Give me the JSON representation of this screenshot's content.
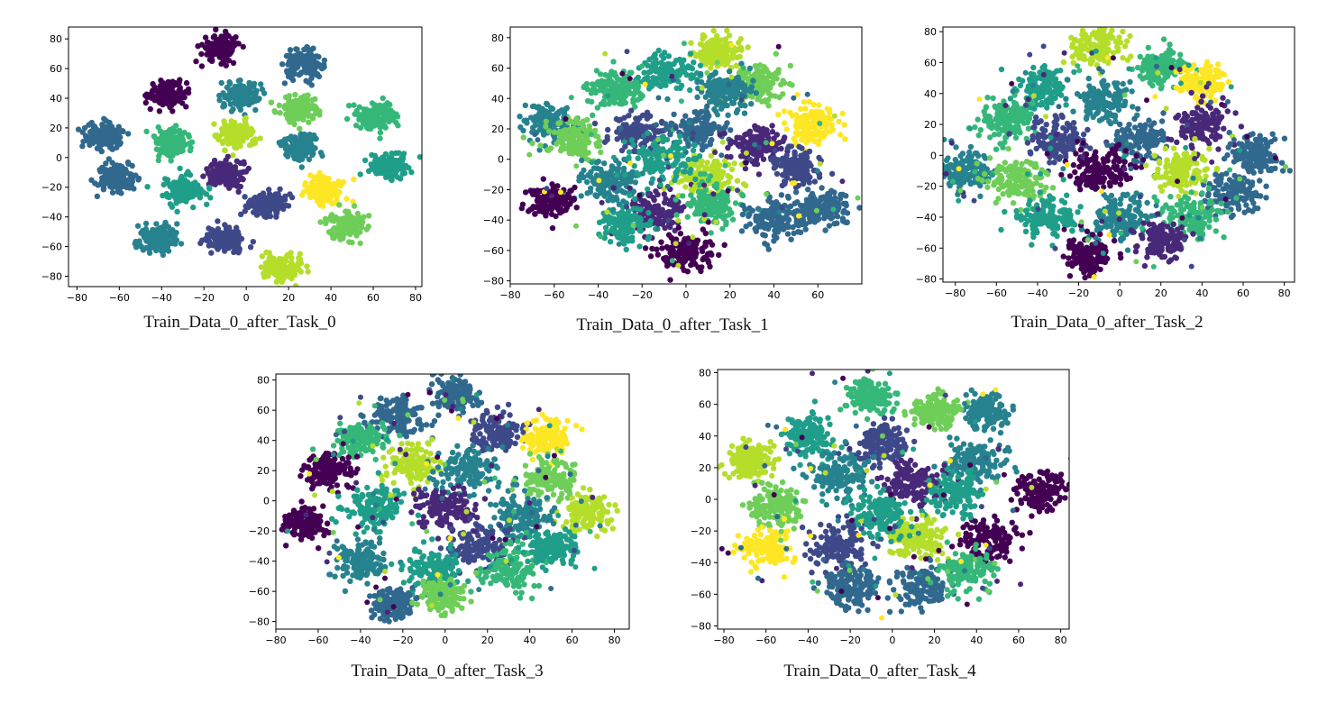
{
  "figure": {
    "type": "tsne-scatter-grid"
  },
  "palette": [
    "#440154",
    "#482878",
    "#3e4989",
    "#31688e",
    "#26828e",
    "#1f9e89",
    "#35b779",
    "#6ece58",
    "#b5de2b",
    "#fde725"
  ],
  "chart_data": [
    {
      "type": "scatter",
      "caption": "Train_Data_0_after_Task_0",
      "title": "",
      "xlabel": "",
      "ylabel": "",
      "xlim": [
        -84,
        83
      ],
      "ylim": [
        -87,
        88
      ],
      "xticks": [
        -80,
        -60,
        -40,
        -20,
        0,
        20,
        40,
        60,
        80
      ],
      "yticks": [
        -80,
        -60,
        -40,
        -20,
        0,
        20,
        40,
        60,
        80
      ],
      "grid": false,
      "legend": "none",
      "colormap": "viridis",
      "clusters": [
        {
          "x": -12,
          "y": 74,
          "spread": 4.5,
          "color": 0
        },
        {
          "x": 27,
          "y": 63,
          "spread": 4.5,
          "color": 3
        },
        {
          "x": -37,
          "y": 43,
          "spread": 4.5,
          "color": 0
        },
        {
          "x": -3,
          "y": 42,
          "spread": 4.5,
          "color": 4
        },
        {
          "x": 25,
          "y": 33,
          "spread": 4.5,
          "color": 7
        },
        {
          "x": 62,
          "y": 28,
          "spread": 4.5,
          "color": 6
        },
        {
          "x": -67,
          "y": 15,
          "spread": 4.5,
          "color": 3
        },
        {
          "x": -5,
          "y": 15,
          "spread": 4.5,
          "color": 8
        },
        {
          "x": 25,
          "y": 8,
          "spread": 4.5,
          "color": 4
        },
        {
          "x": -35,
          "y": 10,
          "spread": 4.5,
          "color": 6
        },
        {
          "x": 68,
          "y": -6,
          "spread": 4.5,
          "color": 5
        },
        {
          "x": -62,
          "y": -14,
          "spread": 4.5,
          "color": 3
        },
        {
          "x": -10,
          "y": -11,
          "spread": 4.5,
          "color": 1
        },
        {
          "x": -30,
          "y": -22,
          "spread": 4.5,
          "color": 5
        },
        {
          "x": 37,
          "y": -21,
          "spread": 4.5,
          "color": 9
        },
        {
          "x": 10,
          "y": -32,
          "spread": 4.5,
          "color": 2
        },
        {
          "x": 47,
          "y": -46,
          "spread": 4.5,
          "color": 7
        },
        {
          "x": -42,
          "y": -55,
          "spread": 4.5,
          "color": 4
        },
        {
          "x": -10,
          "y": -55,
          "spread": 4.5,
          "color": 2
        },
        {
          "x": 17,
          "y": -75,
          "spread": 4.5,
          "color": 8
        }
      ]
    },
    {
      "type": "scatter",
      "caption": "Train_Data_0_after_Task_1",
      "title": "",
      "xlabel": "",
      "ylabel": "",
      "xlim": [
        -80,
        80
      ],
      "ylim": [
        -82,
        87
      ],
      "xticks": [
        -80,
        -60,
        -40,
        -20,
        0,
        20,
        40,
        60
      ],
      "yticks": [
        -80,
        -60,
        -40,
        -20,
        0,
        20,
        40,
        60,
        80
      ],
      "grid": false,
      "legend": "none",
      "colormap": "viridis",
      "clusters": [
        {
          "x": 15,
          "y": 70,
          "spread": 5.5,
          "color": 8
        },
        {
          "x": -8,
          "y": 58,
          "spread": 6,
          "color": 5
        },
        {
          "x": -33,
          "y": 45,
          "spread": 6,
          "color": 6
        },
        {
          "x": 33,
          "y": 50,
          "spread": 6,
          "color": 7
        },
        {
          "x": 18,
          "y": 45,
          "spread": 6,
          "color": 4
        },
        {
          "x": 57,
          "y": 23,
          "spread": 6,
          "color": 9
        },
        {
          "x": -62,
          "y": 23,
          "spread": 6,
          "color": 4
        },
        {
          "x": -50,
          "y": 12,
          "spread": 6,
          "color": 7
        },
        {
          "x": -22,
          "y": 18,
          "spread": 6.5,
          "color": 2
        },
        {
          "x": 5,
          "y": 20,
          "spread": 6,
          "color": 3
        },
        {
          "x": 32,
          "y": 10,
          "spread": 6.5,
          "color": 1
        },
        {
          "x": 50,
          "y": -5,
          "spread": 6,
          "color": 2
        },
        {
          "x": 10,
          "y": -12,
          "spread": 7,
          "color": 8
        },
        {
          "x": -35,
          "y": -15,
          "spread": 7,
          "color": 4
        },
        {
          "x": -15,
          "y": -35,
          "spread": 6.5,
          "color": 1
        },
        {
          "x": -62,
          "y": -28,
          "spread": 5.5,
          "color": 0
        },
        {
          "x": 12,
          "y": -30,
          "spread": 6.5,
          "color": 6
        },
        {
          "x": 40,
          "y": -40,
          "spread": 6.5,
          "color": 3
        },
        {
          "x": 62,
          "y": -33,
          "spread": 6,
          "color": 3
        },
        {
          "x": -28,
          "y": -43,
          "spread": 6,
          "color": 5
        },
        {
          "x": 0,
          "y": -62,
          "spread": 6,
          "color": 0
        },
        {
          "x": -10,
          "y": 0,
          "spread": 7,
          "color": 5
        }
      ]
    },
    {
      "type": "scatter",
      "caption": "Train_Data_0_after_Task_2",
      "title": "",
      "xlabel": "",
      "ylabel": "",
      "xlim": [
        -86,
        85
      ],
      "ylim": [
        -82,
        83
      ],
      "xticks": [
        -80,
        -60,
        -40,
        -20,
        0,
        20,
        40,
        60,
        80
      ],
      "yticks": [
        -80,
        -60,
        -40,
        -20,
        0,
        20,
        40,
        60,
        80
      ],
      "grid": false,
      "legend": "none",
      "colormap": "viridis",
      "clusters": [
        {
          "x": -12,
          "y": 70,
          "spread": 6,
          "color": 8
        },
        {
          "x": 20,
          "y": 57,
          "spread": 6,
          "color": 6
        },
        {
          "x": 40,
          "y": 47,
          "spread": 6,
          "color": 9
        },
        {
          "x": -38,
          "y": 45,
          "spread": 6,
          "color": 5
        },
        {
          "x": -8,
          "y": 35,
          "spread": 7,
          "color": 4
        },
        {
          "x": 40,
          "y": 20,
          "spread": 7,
          "color": 1
        },
        {
          "x": -55,
          "y": 22,
          "spread": 7,
          "color": 6
        },
        {
          "x": -30,
          "y": 10,
          "spread": 7,
          "color": 2
        },
        {
          "x": 10,
          "y": 10,
          "spread": 7,
          "color": 3
        },
        {
          "x": 65,
          "y": 0,
          "spread": 6.5,
          "color": 3
        },
        {
          "x": -75,
          "y": -10,
          "spread": 6,
          "color": 4
        },
        {
          "x": -50,
          "y": -15,
          "spread": 7,
          "color": 7
        },
        {
          "x": -10,
          "y": -10,
          "spread": 7,
          "color": 0
        },
        {
          "x": 30,
          "y": -10,
          "spread": 7,
          "color": 8
        },
        {
          "x": 55,
          "y": -25,
          "spread": 7,
          "color": 3
        },
        {
          "x": -35,
          "y": -40,
          "spread": 7,
          "color": 5
        },
        {
          "x": 0,
          "y": -40,
          "spread": 7,
          "color": 4
        },
        {
          "x": 35,
          "y": -40,
          "spread": 7,
          "color": 6
        },
        {
          "x": -15,
          "y": -65,
          "spread": 5.5,
          "color": 0
        },
        {
          "x": 22,
          "y": -55,
          "spread": 6,
          "color": 1
        }
      ]
    },
    {
      "type": "scatter",
      "caption": "Train_Data_0_after_Task_3",
      "title": "",
      "xlabel": "",
      "ylabel": "",
      "xlim": [
        -80,
        87
      ],
      "ylim": [
        -85,
        84
      ],
      "xticks": [
        -80,
        -60,
        -40,
        -20,
        0,
        20,
        40,
        60,
        80
      ],
      "yticks": [
        -80,
        -60,
        -40,
        -20,
        0,
        20,
        40,
        60,
        80
      ],
      "grid": false,
      "legend": "none",
      "colormap": "viridis",
      "clusters": [
        {
          "x": 5,
          "y": 70,
          "spread": 5.5,
          "color": 3
        },
        {
          "x": -22,
          "y": 57,
          "spread": 6.5,
          "color": 3
        },
        {
          "x": 25,
          "y": 45,
          "spread": 6.5,
          "color": 2
        },
        {
          "x": 48,
          "y": 42,
          "spread": 5.5,
          "color": 9
        },
        {
          "x": -40,
          "y": 40,
          "spread": 6,
          "color": 6
        },
        {
          "x": -55,
          "y": 20,
          "spread": 6,
          "color": 0
        },
        {
          "x": -15,
          "y": 25,
          "spread": 6.5,
          "color": 8
        },
        {
          "x": 10,
          "y": 20,
          "spread": 7,
          "color": 4
        },
        {
          "x": 50,
          "y": 15,
          "spread": 6.5,
          "color": 7
        },
        {
          "x": 68,
          "y": -8,
          "spread": 6,
          "color": 8
        },
        {
          "x": -67,
          "y": -15,
          "spread": 5.5,
          "color": 0
        },
        {
          "x": -35,
          "y": -5,
          "spread": 7,
          "color": 5
        },
        {
          "x": 0,
          "y": -5,
          "spread": 7,
          "color": 1
        },
        {
          "x": 35,
          "y": -10,
          "spread": 7,
          "color": 4
        },
        {
          "x": 15,
          "y": -30,
          "spread": 7,
          "color": 2
        },
        {
          "x": -40,
          "y": -40,
          "spread": 7,
          "color": 4
        },
        {
          "x": -5,
          "y": -45,
          "spread": 7,
          "color": 5
        },
        {
          "x": 30,
          "y": -45,
          "spread": 7,
          "color": 6
        },
        {
          "x": -25,
          "y": -68,
          "spread": 5.5,
          "color": 3
        },
        {
          "x": -2,
          "y": -62,
          "spread": 5,
          "color": 7
        },
        {
          "x": 50,
          "y": -30,
          "spread": 6,
          "color": 5
        }
      ]
    },
    {
      "type": "scatter",
      "caption": "Train_Data_0_after_Task_4",
      "title": "",
      "xlabel": "",
      "ylabel": "",
      "xlim": [
        -83,
        84
      ],
      "ylim": [
        -82,
        82
      ],
      "xticks": [
        -80,
        -60,
        -40,
        -20,
        0,
        20,
        40,
        60,
        80
      ],
      "yticks": [
        -80,
        -60,
        -40,
        -20,
        0,
        20,
        40,
        60,
        80
      ],
      "grid": false,
      "legend": "none",
      "colormap": "viridis",
      "clusters": [
        {
          "x": -10,
          "y": 65,
          "spread": 5.5,
          "color": 6
        },
        {
          "x": 45,
          "y": 55,
          "spread": 5.5,
          "color": 4
        },
        {
          "x": 20,
          "y": 55,
          "spread": 6,
          "color": 7
        },
        {
          "x": -40,
          "y": 40,
          "spread": 6.5,
          "color": 5
        },
        {
          "x": -68,
          "y": 25,
          "spread": 6,
          "color": 8
        },
        {
          "x": -5,
          "y": 35,
          "spread": 6.5,
          "color": 2
        },
        {
          "x": 40,
          "y": 25,
          "spread": 6.5,
          "color": 4
        },
        {
          "x": 70,
          "y": 5,
          "spread": 6,
          "color": 0
        },
        {
          "x": -25,
          "y": 15,
          "spread": 6.5,
          "color": 4
        },
        {
          "x": 10,
          "y": 10,
          "spread": 7,
          "color": 1
        },
        {
          "x": -55,
          "y": -5,
          "spread": 6.5,
          "color": 7
        },
        {
          "x": -60,
          "y": -30,
          "spread": 6,
          "color": 9
        },
        {
          "x": -25,
          "y": -30,
          "spread": 7,
          "color": 2
        },
        {
          "x": 10,
          "y": -25,
          "spread": 7,
          "color": 8
        },
        {
          "x": 45,
          "y": -25,
          "spread": 6.5,
          "color": 0
        },
        {
          "x": -5,
          "y": -10,
          "spread": 7,
          "color": 5
        },
        {
          "x": -20,
          "y": -55,
          "spread": 6.5,
          "color": 3
        },
        {
          "x": 15,
          "y": -55,
          "spread": 6.5,
          "color": 3
        },
        {
          "x": 35,
          "y": -45,
          "spread": 6,
          "color": 6
        },
        {
          "x": 30,
          "y": 5,
          "spread": 6.5,
          "color": 5
        }
      ]
    }
  ]
}
